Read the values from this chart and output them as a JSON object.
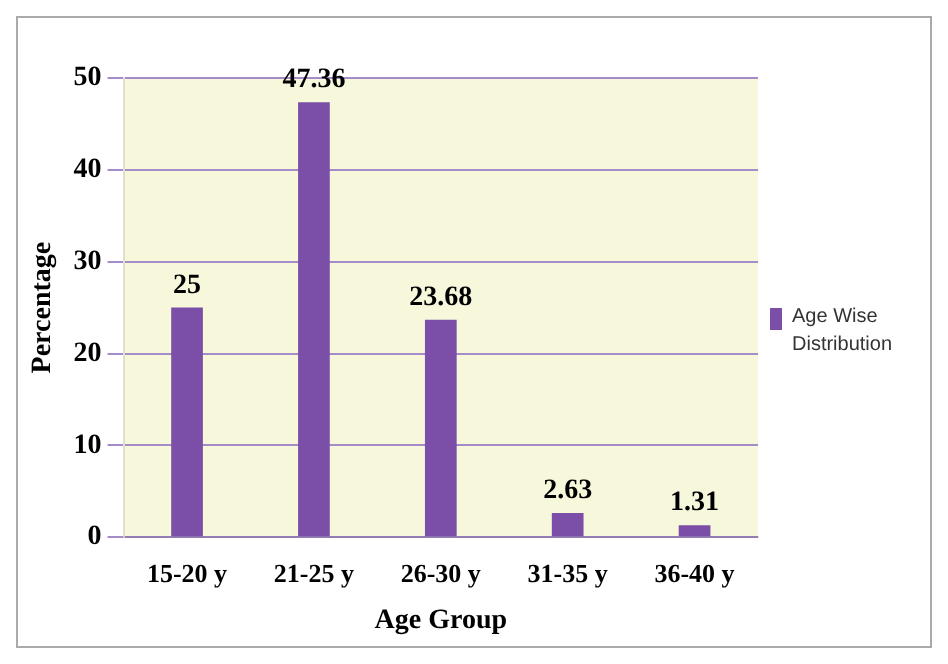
{
  "chart_data": {
    "type": "bar",
    "xlabel": "Age Group",
    "ylabel": "Percentage",
    "categories": [
      "15-20 y",
      "21-25 y",
      "26-30 y",
      "31-35 y",
      "36-40 y"
    ],
    "series": [
      {
        "name": "Age Wise Distribution",
        "color": "#7b4fa8",
        "values": [
          25,
          47.36,
          23.68,
          2.63,
          1.31
        ]
      }
    ],
    "ylim": [
      0,
      50
    ],
    "yticks": [
      0,
      10,
      20,
      30,
      40,
      50
    ],
    "grid": "y",
    "legend": "right",
    "data_labels": true
  }
}
